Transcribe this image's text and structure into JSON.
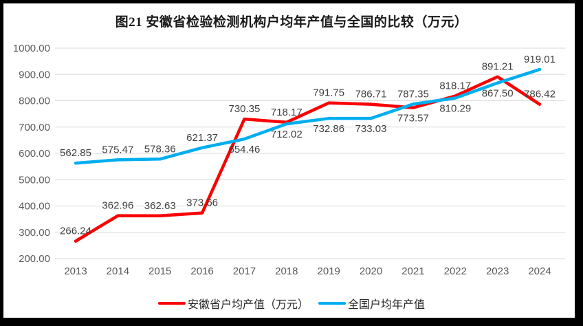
{
  "title": "图21 安徽省检验检测机构户均年产值与全国的比较（万元）",
  "chart_data": {
    "type": "line",
    "categories": [
      "2013",
      "2014",
      "2015",
      "2016",
      "2017",
      "2018",
      "2019",
      "2020",
      "2021",
      "2022",
      "2023",
      "2024"
    ],
    "series": [
      {
        "name": "安徽省户均产值（万元）",
        "color": "#fb0000",
        "values": [
          266.24,
          362.96,
          362.63,
          373.66,
          730.35,
          718.17,
          791.75,
          786.71,
          773.57,
          818.17,
          891.21,
          786.42
        ],
        "value_labels": [
          "266.24",
          "362.96",
          "362.63",
          "373.66",
          "730.35",
          "718.17",
          "791.75",
          "786.71",
          "773.57",
          "818.17",
          "891.21",
          "786.42"
        ],
        "label_positions": [
          "above",
          "above",
          "above",
          "above",
          "above",
          "above",
          "above",
          "above",
          "below",
          "above",
          "above",
          "above"
        ]
      },
      {
        "name": "全国户均年产值",
        "color": "#00aeef",
        "values": [
          562.85,
          575.47,
          578.36,
          621.37,
          654.46,
          712.02,
          732.86,
          733.03,
          787.35,
          810.29,
          867.5,
          919.01
        ],
        "value_labels": [
          "562.85",
          "575.47",
          "578.36",
          "621.37",
          "654.46",
          "712.02",
          "732.86",
          "733.03",
          "787.35",
          "810.29",
          "867.50",
          "919.01"
        ],
        "label_positions": [
          "above",
          "above",
          "above",
          "above",
          "below",
          "below",
          "below",
          "below",
          "above",
          "below",
          "below",
          "above"
        ]
      }
    ],
    "ylim": [
      200,
      1000
    ],
    "y_ticks": [
      "1000.00",
      "900.00",
      "800.00",
      "700.00",
      "600.00",
      "500.00",
      "400.00",
      "300.00",
      "200.00"
    ],
    "xlabel": "",
    "ylabel": "",
    "grid": "horizontal",
    "legend_position": "bottom",
    "gridline_color": "#d9d9d9",
    "axis_text_color": "#595959",
    "label_text_color": "#3f3f3f"
  },
  "legend": {
    "items": [
      {
        "label": "安徽省户均产值（万元）",
        "color": "#fb0000"
      },
      {
        "label": "全国户均年产值",
        "color": "#00aeef"
      }
    ]
  }
}
